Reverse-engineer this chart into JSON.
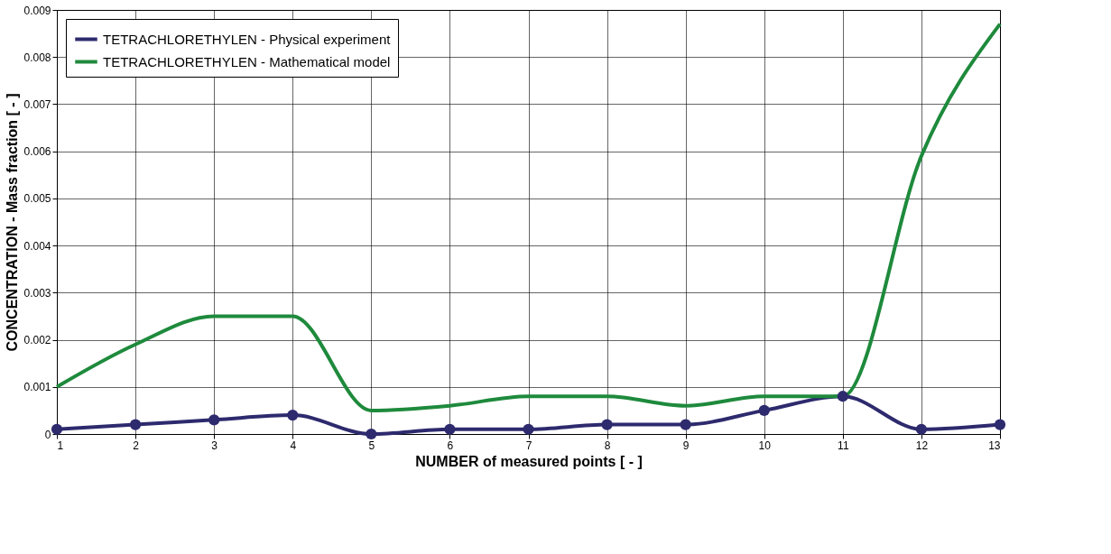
{
  "chart_data": {
    "type": "line",
    "xlabel": "NUMBER of measured points [ - ]",
    "ylabel": "CONCENTRATION - Mass fraction [ - ]",
    "x": [
      1,
      2,
      3,
      4,
      5,
      6,
      7,
      8,
      9,
      10,
      11,
      12,
      13
    ],
    "series": [
      {
        "name": "TETRACHLORETHYLEN - Physical experiment",
        "color": "#2e2a6e",
        "marker": "circle",
        "values": [
          0.0001,
          0.0002,
          0.0003,
          0.0004,
          0,
          0.0001,
          0.0001,
          0.0002,
          0.0002,
          0.0005,
          0.0008,
          0.0001,
          0.0002
        ]
      },
      {
        "name": "TETRACHLORETHYLEN - Mathematical model",
        "color": "#1e8a3c",
        "marker": "none",
        "values": [
          0.001,
          0.0019,
          0.0025,
          0.0025,
          0.0005,
          0.0006,
          0.0008,
          0.0008,
          0.0006,
          0.0008,
          0.0008,
          0.0059,
          0.0087
        ]
      }
    ],
    "xlim": [
      1,
      13
    ],
    "xticks": [
      1,
      2,
      3,
      4,
      5,
      6,
      7,
      8,
      9,
      10,
      11,
      12,
      13
    ],
    "ylim": [
      0,
      0.009
    ],
    "yticks": [
      0,
      0.001,
      0.002,
      0.003,
      0.004,
      0.005,
      0.006,
      0.007,
      0.008,
      0.009
    ],
    "grid": true,
    "legend": "top left"
  }
}
